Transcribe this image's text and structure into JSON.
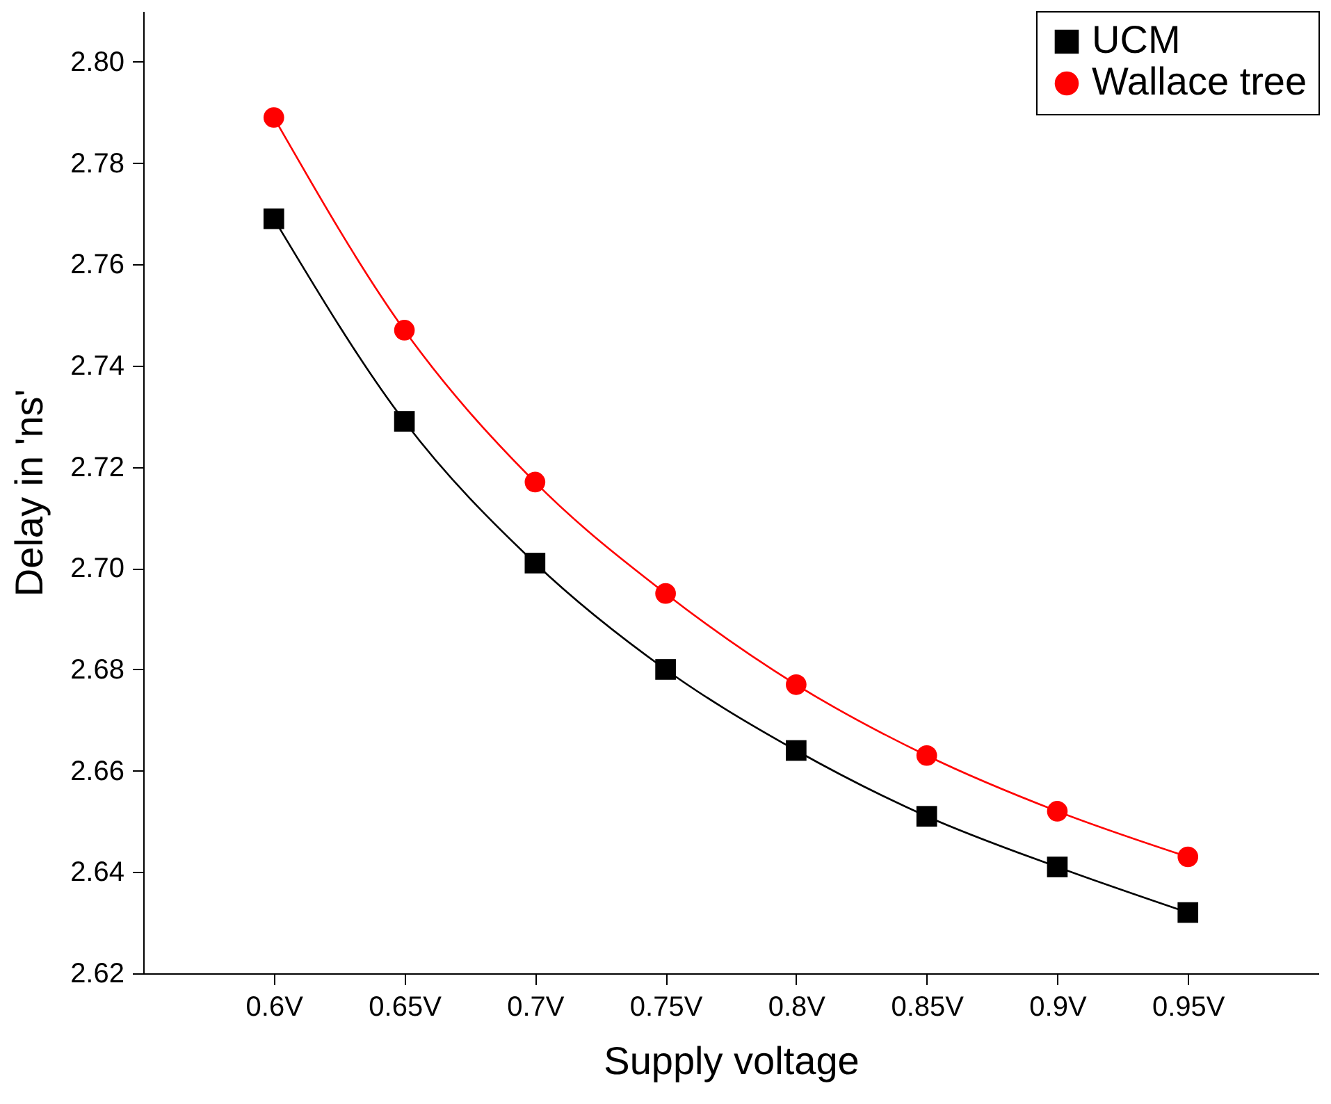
{
  "chart_data": {
    "type": "line",
    "xlabel": "Supply voltage",
    "ylabel": "Delay in 'ns'",
    "categories": [
      "0.6V",
      "0.65V",
      "0.7V",
      "0.75V",
      "0.8V",
      "0.85V",
      "0.9V",
      "0.95V"
    ],
    "series": [
      {
        "name": "UCM",
        "color": "#000000",
        "marker": "square",
        "values": [
          2.769,
          2.729,
          2.701,
          2.68,
          2.664,
          2.651,
          2.641,
          2.632
        ]
      },
      {
        "name": "Wallace tree",
        "color": "#ff0000",
        "marker": "circle",
        "values": [
          2.789,
          2.747,
          2.717,
          2.695,
          2.677,
          2.663,
          2.652,
          2.643
        ]
      }
    ],
    "ylim": [
      2.62,
      2.81
    ],
    "yticks": [
      2.62,
      2.64,
      2.66,
      2.68,
      {
        "value": 2.7,
        "label": "2.70"
      },
      2.72,
      2.74,
      2.76,
      2.78,
      {
        "value": 2.8,
        "label": "2.80"
      }
    ],
    "grid": false,
    "legend": "top right",
    "line_style": "solid"
  }
}
